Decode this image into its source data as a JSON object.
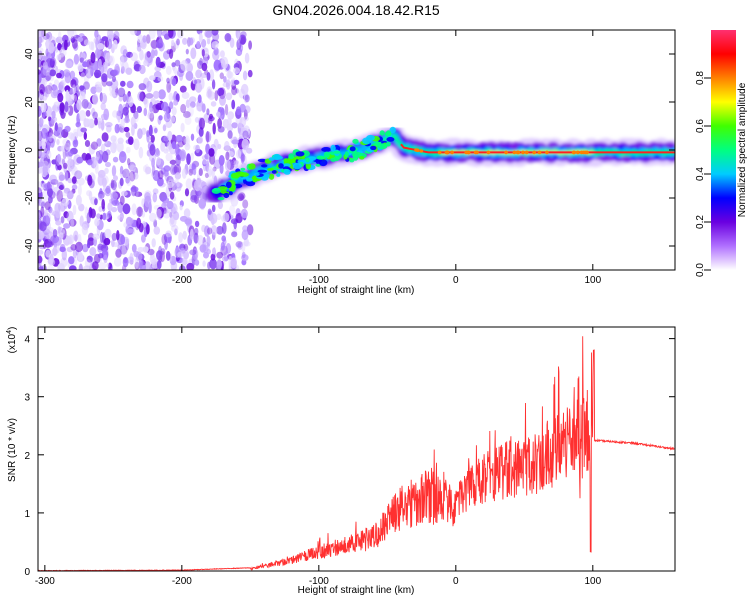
{
  "figure": {
    "title": "GN04.2026.004.18.42.R15"
  },
  "chart_data": [
    {
      "type": "heatmap",
      "xlabel": "Height of straight line (km)",
      "ylabel": "Frequency (Hz)",
      "xlim": [
        -305,
        160
      ],
      "ylim": [
        -50,
        50
      ],
      "x_ticks": [
        -300,
        -200,
        -100,
        0,
        100
      ],
      "y_ticks": [
        -40,
        -20,
        0,
        20,
        40
      ],
      "colorbar": {
        "label": "Normalized spectral amplitude",
        "range": [
          0.0,
          1.0
        ],
        "ticks": [
          0.0,
          0.2,
          0.4,
          0.6,
          0.8
        ],
        "tick_labels": [
          "0.0",
          "0.2",
          "0.4",
          "0.6",
          "0.8"
        ],
        "colors": [
          "#ffffff",
          "#b070ff",
          "#6a00e0",
          "#0000ff",
          "#00ccff",
          "#00ff80",
          "#40ff00",
          "#ffff00",
          "#ff8000",
          "#ff0000",
          "#ff3070"
        ]
      },
      "ridge": [
        {
          "x": -175,
          "y": -18
        },
        {
          "x": -160,
          "y": -13
        },
        {
          "x": -140,
          "y": -8
        },
        {
          "x": -120,
          "y": -5
        },
        {
          "x": -100,
          "y": -3
        },
        {
          "x": -80,
          "y": -1
        },
        {
          "x": -60,
          "y": 2
        },
        {
          "x": -45,
          "y": 6
        },
        {
          "x": -38,
          "y": 1
        },
        {
          "x": -20,
          "y": -1
        },
        {
          "x": 0,
          "y": -1
        },
        {
          "x": 50,
          "y": -1
        },
        {
          "x": 100,
          "y": -1
        },
        {
          "x": 160,
          "y": -1
        }
      ]
    },
    {
      "type": "line",
      "xlabel": "Height of straight line (km)",
      "ylabel": "SNR (10 * v/v)",
      "y_multiplier": "(x10",
      "y_multiplier_exp": "4",
      "y_multiplier_close": ")",
      "xlim": [
        -305,
        160
      ],
      "ylim": [
        0,
        4.2
      ],
      "x_ticks": [
        -300,
        -200,
        -100,
        0,
        100
      ],
      "y_ticks": [
        0,
        1,
        2,
        3,
        4
      ],
      "color": "#ff3030",
      "envelope": [
        {
          "x": -305,
          "y": 0.0
        },
        {
          "x": -200,
          "y": 0.01
        },
        {
          "x": -150,
          "y": 0.05
        },
        {
          "x": -120,
          "y": 0.25
        },
        {
          "x": -100,
          "y": 0.45
        },
        {
          "x": -80,
          "y": 0.6
        },
        {
          "x": -60,
          "y": 0.8
        },
        {
          "x": -40,
          "y": 1.5
        },
        {
          "x": -20,
          "y": 1.8
        },
        {
          "x": 0,
          "y": 1.6
        },
        {
          "x": 30,
          "y": 2.2
        },
        {
          "x": 60,
          "y": 2.4
        },
        {
          "x": 80,
          "y": 2.8
        },
        {
          "x": 92,
          "y": 3.5
        },
        {
          "x": 100,
          "y": 2.25
        },
        {
          "x": 130,
          "y": 2.2
        },
        {
          "x": 160,
          "y": 2.1
        }
      ]
    }
  ]
}
